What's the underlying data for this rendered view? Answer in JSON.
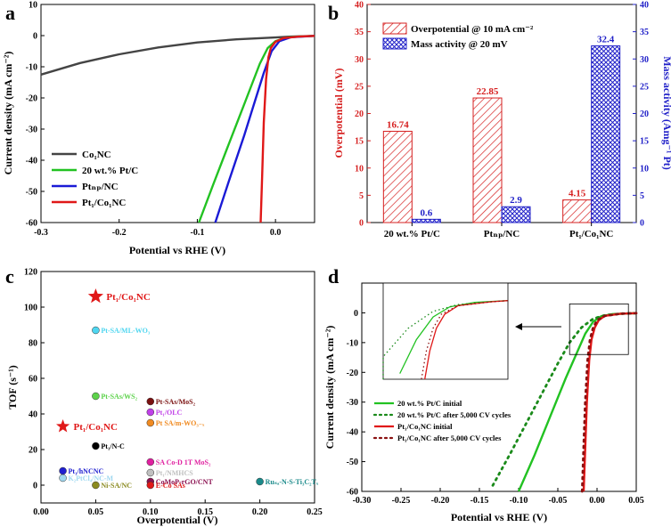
{
  "chart_data": [
    {
      "panel": "a",
      "type": "line",
      "xlabel": "Potential vs RHE (V)",
      "ylabel": "Current density (mA cm⁻²)",
      "xlim": [
        -0.3,
        0.05
      ],
      "ylim": [
        -60,
        10
      ],
      "xticks": [
        -0.3,
        -0.2,
        -0.1,
        0.0
      ],
      "xtick_labels": [
        "-0.3",
        "-0.2",
        "-0.1",
        "0.0"
      ],
      "yticks": [
        10,
        0,
        -10,
        -20,
        -30,
        -40,
        -50,
        -60
      ],
      "ytick_labels": [
        "10",
        "0",
        "-10",
        "-20",
        "-30",
        "-40",
        "-50",
        "-60"
      ],
      "series": [
        {
          "name": "Co1NC",
          "label": "Co₁NC",
          "color": "#444444",
          "x": [
            -0.3,
            -0.25,
            -0.2,
            -0.15,
            -0.1,
            -0.05,
            0.0,
            0.02,
            0.05
          ],
          "y": [
            -12.5,
            -8.8,
            -6.0,
            -3.8,
            -2.2,
            -1.2,
            -0.6,
            -0.3,
            -0.1
          ]
        },
        {
          "name": "20 wt.% Pt/C",
          "label": "20 wt.% Pt/C",
          "color": "#22c222",
          "x": [
            -0.098,
            -0.08,
            -0.06,
            -0.04,
            -0.02,
            -0.01,
            0.0,
            0.01,
            0.02,
            0.05
          ],
          "y": [
            -60,
            -48,
            -35,
            -22,
            -9,
            -4,
            -1.8,
            -0.9,
            -0.4,
            -0.1
          ]
        },
        {
          "name": "PtNP/NC",
          "label": "Ptₙₚ/NC",
          "color": "#1a1ad6",
          "x": [
            -0.077,
            -0.06,
            -0.04,
            -0.025,
            -0.015,
            -0.005,
            0.005,
            0.02,
            0.05
          ],
          "y": [
            -60,
            -47,
            -32,
            -20,
            -12,
            -5,
            -1.8,
            -0.5,
            -0.1
          ]
        },
        {
          "name": "Pt1/Co1NC",
          "label": "Pt₁/Co₁NC",
          "color": "#e01818",
          "x": [
            -0.019,
            -0.017,
            -0.015,
            -0.012,
            -0.009,
            -0.006,
            0.0,
            0.01,
            0.03,
            0.05
          ],
          "y": [
            -60,
            -45,
            -28,
            -14,
            -7,
            -4,
            -2,
            -0.8,
            -0.3,
            -0.1
          ]
        }
      ]
    },
    {
      "panel": "b",
      "type": "bar",
      "categories": [
        "20 wt.% Pt/C",
        "PtNP/NC",
        "Pt1/Co1NC"
      ],
      "category_labels": [
        "20 wt.% Pt/C",
        "Ptₙₚ/NC",
        "Pt₁/Co₁NC"
      ],
      "ylabel": "Overpotential (mV)",
      "y2label": "Mass activity (Amg⁻¹ Pt)",
      "ylim": [
        0,
        40
      ],
      "y2lim": [
        0,
        40
      ],
      "yticks": [
        0,
        5,
        10,
        15,
        20,
        25,
        30,
        35,
        40
      ],
      "ytick_labels": [
        "0",
        "5",
        "10",
        "15",
        "20",
        "25",
        "30",
        "35",
        "40"
      ],
      "y2ticks": [
        0,
        5,
        10,
        15,
        20,
        25,
        30,
        35,
        40
      ],
      "y2tick_labels": [
        "0",
        "5",
        "10",
        "15",
        "20",
        "25",
        "30",
        "35",
        "40"
      ],
      "series": [
        {
          "name": "Overpotential @ 10 mA cm-2",
          "label": "Overpotential @ 10 mA cm⁻²",
          "axis": "left",
          "color": "#d62020",
          "values": [
            16.74,
            22.85,
            4.15
          ],
          "value_labels": [
            "16.74",
            "22.85",
            "4.15"
          ]
        },
        {
          "name": "Mass activity @ 20 mV",
          "label": "Mass activity @ 20 mV",
          "axis": "right",
          "color": "#2020c8",
          "values": [
            0.6,
            2.9,
            32.4
          ],
          "value_labels": [
            "0.6",
            "2.9",
            "32.4"
          ]
        }
      ]
    },
    {
      "panel": "c",
      "type": "scatter",
      "xlabel": "Overpotential (V)",
      "ylabel": "TOF (s⁻¹)",
      "xlim": [
        0.0,
        0.25
      ],
      "ylim": [
        -10,
        120
      ],
      "xticks": [
        0.0,
        0.05,
        0.1,
        0.15,
        0.2,
        0.25
      ],
      "xtick_labels": [
        "0.00",
        "0.05",
        "0.10",
        "0.15",
        "0.20",
        "0.25"
      ],
      "yticks": [
        0,
        20,
        40,
        60,
        80,
        100,
        120
      ],
      "ytick_labels": [
        "0",
        "20",
        "40",
        "60",
        "80",
        "100",
        "120"
      ],
      "points": [
        {
          "label": "Pt₁/Co₁NC",
          "x": 0.05,
          "y": 106,
          "color": "#e01818",
          "marker": "star"
        },
        {
          "label": "Pt-SA/ML-WO₃",
          "x": 0.05,
          "y": 87,
          "color": "#4fd6f0",
          "marker": "circle"
        },
        {
          "label": "Pt-SAs/WS₂",
          "x": 0.05,
          "y": 50,
          "color": "#5cd24a",
          "marker": "circle"
        },
        {
          "label": "Pt-SAs/MoS₂",
          "x": 0.1,
          "y": 47,
          "color": "#7a1010",
          "marker": "circle"
        },
        {
          "label": "Pt₁/OLC",
          "x": 0.1,
          "y": 41,
          "color": "#c040e8",
          "marker": "circle"
        },
        {
          "label": "Pt SA/m-WO₃₋ₓ",
          "x": 0.1,
          "y": 35,
          "color": "#f08a20",
          "marker": "circle"
        },
        {
          "label": "Pt₁/Co₁NC",
          "x": 0.02,
          "y": 33,
          "color": "#e01818",
          "marker": "star"
        },
        {
          "label": "Pt₁/N-C",
          "x": 0.05,
          "y": 22,
          "color": "#000000",
          "marker": "circle"
        },
        {
          "label": "SA Co-D 1T MoS₂",
          "x": 0.1,
          "y": 13,
          "color": "#e020a0",
          "marker": "circle"
        },
        {
          "label": "Pt₁/hNCNC",
          "x": 0.02,
          "y": 8,
          "color": "#2020d0",
          "marker": "circle"
        },
        {
          "label": "Pt₁/NMHCS",
          "x": 0.1,
          "y": 7,
          "color": "#c0c0c0",
          "marker": "circle"
        },
        {
          "label": "K₂PtCl₄/NC-M",
          "x": 0.02,
          "y": 4,
          "color": "#a0d8f0",
          "marker": "circle"
        },
        {
          "label": "CoMoP-rGO/CNT",
          "x": 0.1,
          "y": 2,
          "color": "#8a1050",
          "marker": "circle"
        },
        {
          "label": "Ruₛₐ-N-S-Ti₃C₂Tₓ",
          "x": 0.2,
          "y": 2,
          "color": "#1a8a8a",
          "marker": "circle"
        },
        {
          "label": "Ni-SA/NC",
          "x": 0.05,
          "y": 0,
          "color": "#8a8a20",
          "marker": "circle"
        },
        {
          "label": "E-Co SAs",
          "x": 0.1,
          "y": 0,
          "color": "#e01818",
          "marker": "circle"
        }
      ]
    },
    {
      "panel": "d",
      "type": "line",
      "xlabel": "Potential vs RHE (V)",
      "ylabel": "Current density (mA cm⁻²)",
      "xlim": [
        -0.3,
        0.05
      ],
      "ylim": [
        -60,
        10
      ],
      "xticks": [
        -0.3,
        -0.25,
        -0.2,
        -0.15,
        -0.1,
        -0.05,
        0.0,
        0.05
      ],
      "xtick_labels": [
        "-0.30",
        "-0.25",
        "-0.20",
        "-0.15",
        "-0.10",
        "-0.05",
        "0.00",
        "0.05"
      ],
      "yticks": [
        0,
        -10,
        -20,
        -30,
        -40,
        -50,
        -60
      ],
      "ytick_labels": [
        "0",
        "-10",
        "-20",
        "-30",
        "-40",
        "-50",
        "-60"
      ],
      "series": [
        {
          "name": "20 wt.% Pt/C initial",
          "label": "20 wt.% Pt/C initial",
          "color": "#22c222",
          "dash": "solid",
          "x": [
            -0.1,
            -0.08,
            -0.06,
            -0.04,
            -0.025,
            -0.015,
            -0.005,
            0.005,
            0.02,
            0.05
          ],
          "y": [
            -60,
            -48,
            -35,
            -22,
            -13,
            -7,
            -3,
            -1.2,
            -0.4,
            -0.1
          ]
        },
        {
          "name": "20 wt.% Pt/C after 5,000 CV cycles",
          "label": "20 wt.% Pt/C after 5,000 CV cycles",
          "color": "#1a8a1a",
          "dash": "dot",
          "x": [
            -0.133,
            -0.11,
            -0.09,
            -0.07,
            -0.05,
            -0.035,
            -0.02,
            -0.005,
            0.01,
            0.03,
            0.05
          ],
          "y": [
            -58,
            -47,
            -37,
            -27,
            -17,
            -10,
            -5,
            -2,
            -0.8,
            -0.3,
            -0.1
          ]
        },
        {
          "name": "Pt1/Co1NC initial",
          "label": "Pt₁/Co₁NC initial",
          "color": "#e01818",
          "dash": "solid",
          "x": [
            -0.017,
            -0.015,
            -0.013,
            -0.01,
            -0.007,
            -0.003,
            0.002,
            0.01,
            0.03,
            0.05
          ],
          "y": [
            -60,
            -45,
            -30,
            -16,
            -9,
            -5,
            -2.5,
            -1,
            -0.3,
            -0.1
          ]
        },
        {
          "name": "Pt1/Co1NC after 5,000 CV cycles",
          "label": "Pt₁/Co₁NC after 5,000 CV cycles",
          "color": "#8a1010",
          "dash": "dot",
          "x": [
            -0.019,
            -0.017,
            -0.015,
            -0.012,
            -0.009,
            -0.005,
            0.0,
            0.01,
            0.03,
            0.05
          ],
          "y": [
            -60,
            -45,
            -30,
            -16,
            -9,
            -5,
            -2.5,
            -1,
            -0.3,
            -0.1
          ]
        }
      ]
    }
  ]
}
